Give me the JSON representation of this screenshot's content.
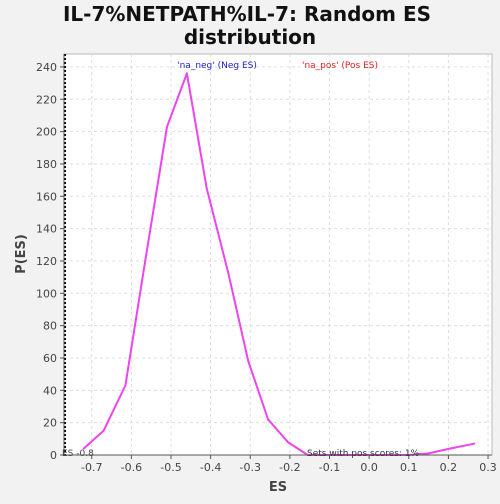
{
  "chart_data": {
    "type": "line",
    "title_lines": [
      "IL-7%NETPATH%IL-7: Random ES",
      "distribution"
    ],
    "xlabel": "ES",
    "ylabel": "P(ES)",
    "xlim": [
      -0.77,
      0.31
    ],
    "ylim": [
      0,
      248
    ],
    "x_ticks": [
      -0.7,
      -0.6,
      -0.5,
      -0.4,
      -0.3,
      -0.2,
      -0.1,
      0.0,
      0.1,
      0.2,
      0.3
    ],
    "x_tick_labels": [
      "-0.7",
      "-0.6",
      "-0.5",
      "-0.4",
      "-0.3",
      "-0.2",
      "-0.1",
      "0.0",
      "0.1",
      "0.2",
      "0.3"
    ],
    "y_ticks": [
      0,
      20,
      40,
      60,
      80,
      100,
      120,
      140,
      160,
      180,
      200,
      220,
      240
    ],
    "y_tick_labels": [
      "0",
      "20",
      "40",
      "60",
      "80",
      "100",
      "120",
      "140",
      "160",
      "180",
      "200",
      "220",
      "240"
    ],
    "grid": true,
    "legend": [
      {
        "label": "'na_neg' (Neg ES)",
        "color": "#2222cc"
      },
      {
        "label": "'na_pos' (Pos ES)",
        "color": "#dd2222"
      }
    ],
    "series": [
      {
        "color": "#ee44ee",
        "points": [
          [
            -0.72,
            4
          ],
          [
            -0.67,
            15
          ],
          [
            -0.615,
            43
          ],
          [
            -0.565,
            120
          ],
          [
            -0.51,
            203
          ],
          [
            -0.46,
            236
          ],
          [
            -0.41,
            165
          ],
          [
            -0.355,
            112
          ],
          [
            -0.305,
            58
          ],
          [
            -0.255,
            22
          ],
          [
            -0.205,
            8
          ],
          [
            -0.155,
            0
          ],
          [
            -0.1,
            0
          ],
          [
            -0.05,
            0
          ],
          [
            0.0,
            0
          ],
          [
            0.05,
            0
          ],
          [
            0.1,
            0
          ],
          [
            0.15,
            1
          ],
          [
            0.205,
            4
          ],
          [
            0.265,
            7
          ]
        ]
      }
    ],
    "annotations": {
      "rug_label": "ES -0.8",
      "pos_scores": "Sets with pos scores: 1%"
    }
  }
}
